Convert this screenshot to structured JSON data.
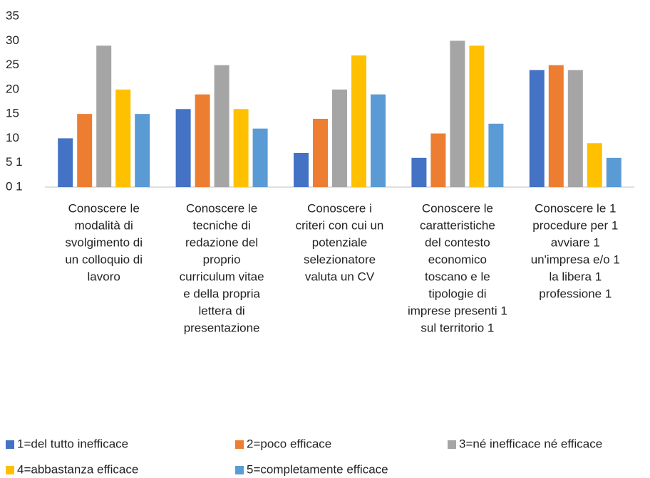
{
  "chart_data": {
    "type": "bar",
    "categories": [
      [
        "Conoscere le",
        "modalità di",
        "svolgimento di",
        "un colloquio di",
        "lavoro"
      ],
      [
        "Conoscere le",
        "tecniche di",
        "redazione del",
        "proprio",
        "curriculum vitae",
        "e della propria",
        "lettera di",
        "presentazione"
      ],
      [
        "Conoscere i",
        "criteri con cui un",
        "potenziale",
        "selezionatore",
        "valuta un CV"
      ],
      [
        "Conoscere le",
        "caratteristiche",
        "del contesto",
        "economico",
        "toscano e le",
        "tipologie di",
        "imprese presenti 1",
        "sul territorio 1"
      ],
      [
        "Conoscere le 1",
        "procedure per 1",
        "avviare 1",
        "un'impresa e/o 1",
        "la libera 1",
        "professione 1"
      ]
    ],
    "series": [
      {
        "name": "1=del tutto inefficace",
        "color": "#4472c4",
        "values": [
          10,
          16,
          7,
          6,
          24
        ]
      },
      {
        "name": "2=poco efficace",
        "color": "#ed7d31",
        "values": [
          15,
          19,
          14,
          11,
          25
        ]
      },
      {
        "name": "3=né inefficace né efficace",
        "color": "#a5a5a5",
        "values": [
          29,
          25,
          20,
          30,
          24
        ]
      },
      {
        "name": "4=abbastanza efficace",
        "color": "#ffc000",
        "values": [
          20,
          16,
          27,
          29,
          9
        ]
      },
      {
        "name": "5=completamente efficace",
        "color": "#5b9bd5",
        "values": [
          15,
          12,
          19,
          13,
          6
        ]
      }
    ],
    "ylim": [
      0,
      35
    ],
    "yticks": [
      {
        "value": 0,
        "label": "0 1"
      },
      {
        "value": 5,
        "label": "5 1"
      },
      10,
      15,
      20,
      25,
      30,
      35
    ],
    "grid": false,
    "legend": "bottom"
  }
}
